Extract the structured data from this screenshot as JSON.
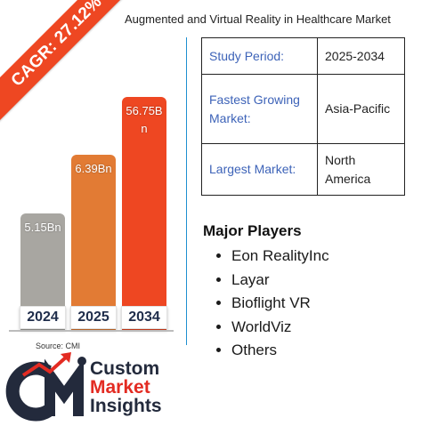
{
  "title": "Augmented and Virtual Reality in Healthcare Market",
  "cagr_label": "CAGR: 27.12%",
  "colors": {
    "accent": "#ee4722",
    "bar_2024": "#a8a6a1",
    "bar_2025": "#e27b34",
    "bar_2034": "#ee4722",
    "key_text": "#3d63b8",
    "divider": "#1f8fd0"
  },
  "chart_data": {
    "type": "bar",
    "categories": [
      "2024",
      "2025",
      "2034"
    ],
    "values": [
      5.15,
      6.39,
      56.75
    ],
    "value_labels": [
      "5.15Bn",
      "6.39Bn",
      "56.75Bn"
    ],
    "unit": "Bn"
  },
  "source": "Source: CMI",
  "info": [
    {
      "key": "Study Period:",
      "value": "2025-2034"
    },
    {
      "key": "Fastest Growing Market:",
      "value": "Asia-Pacific"
    },
    {
      "key": "Largest Market:",
      "value": "North America"
    }
  ],
  "players_title": "Major Players",
  "players": [
    "Eon RealityInc",
    "Layar",
    "Bioflight VR",
    "WorldViz",
    "Others"
  ],
  "logo": {
    "icon": "cmi-logo-icon",
    "line1": "Custom",
    "line2": "Market",
    "line3": "Insights"
  }
}
